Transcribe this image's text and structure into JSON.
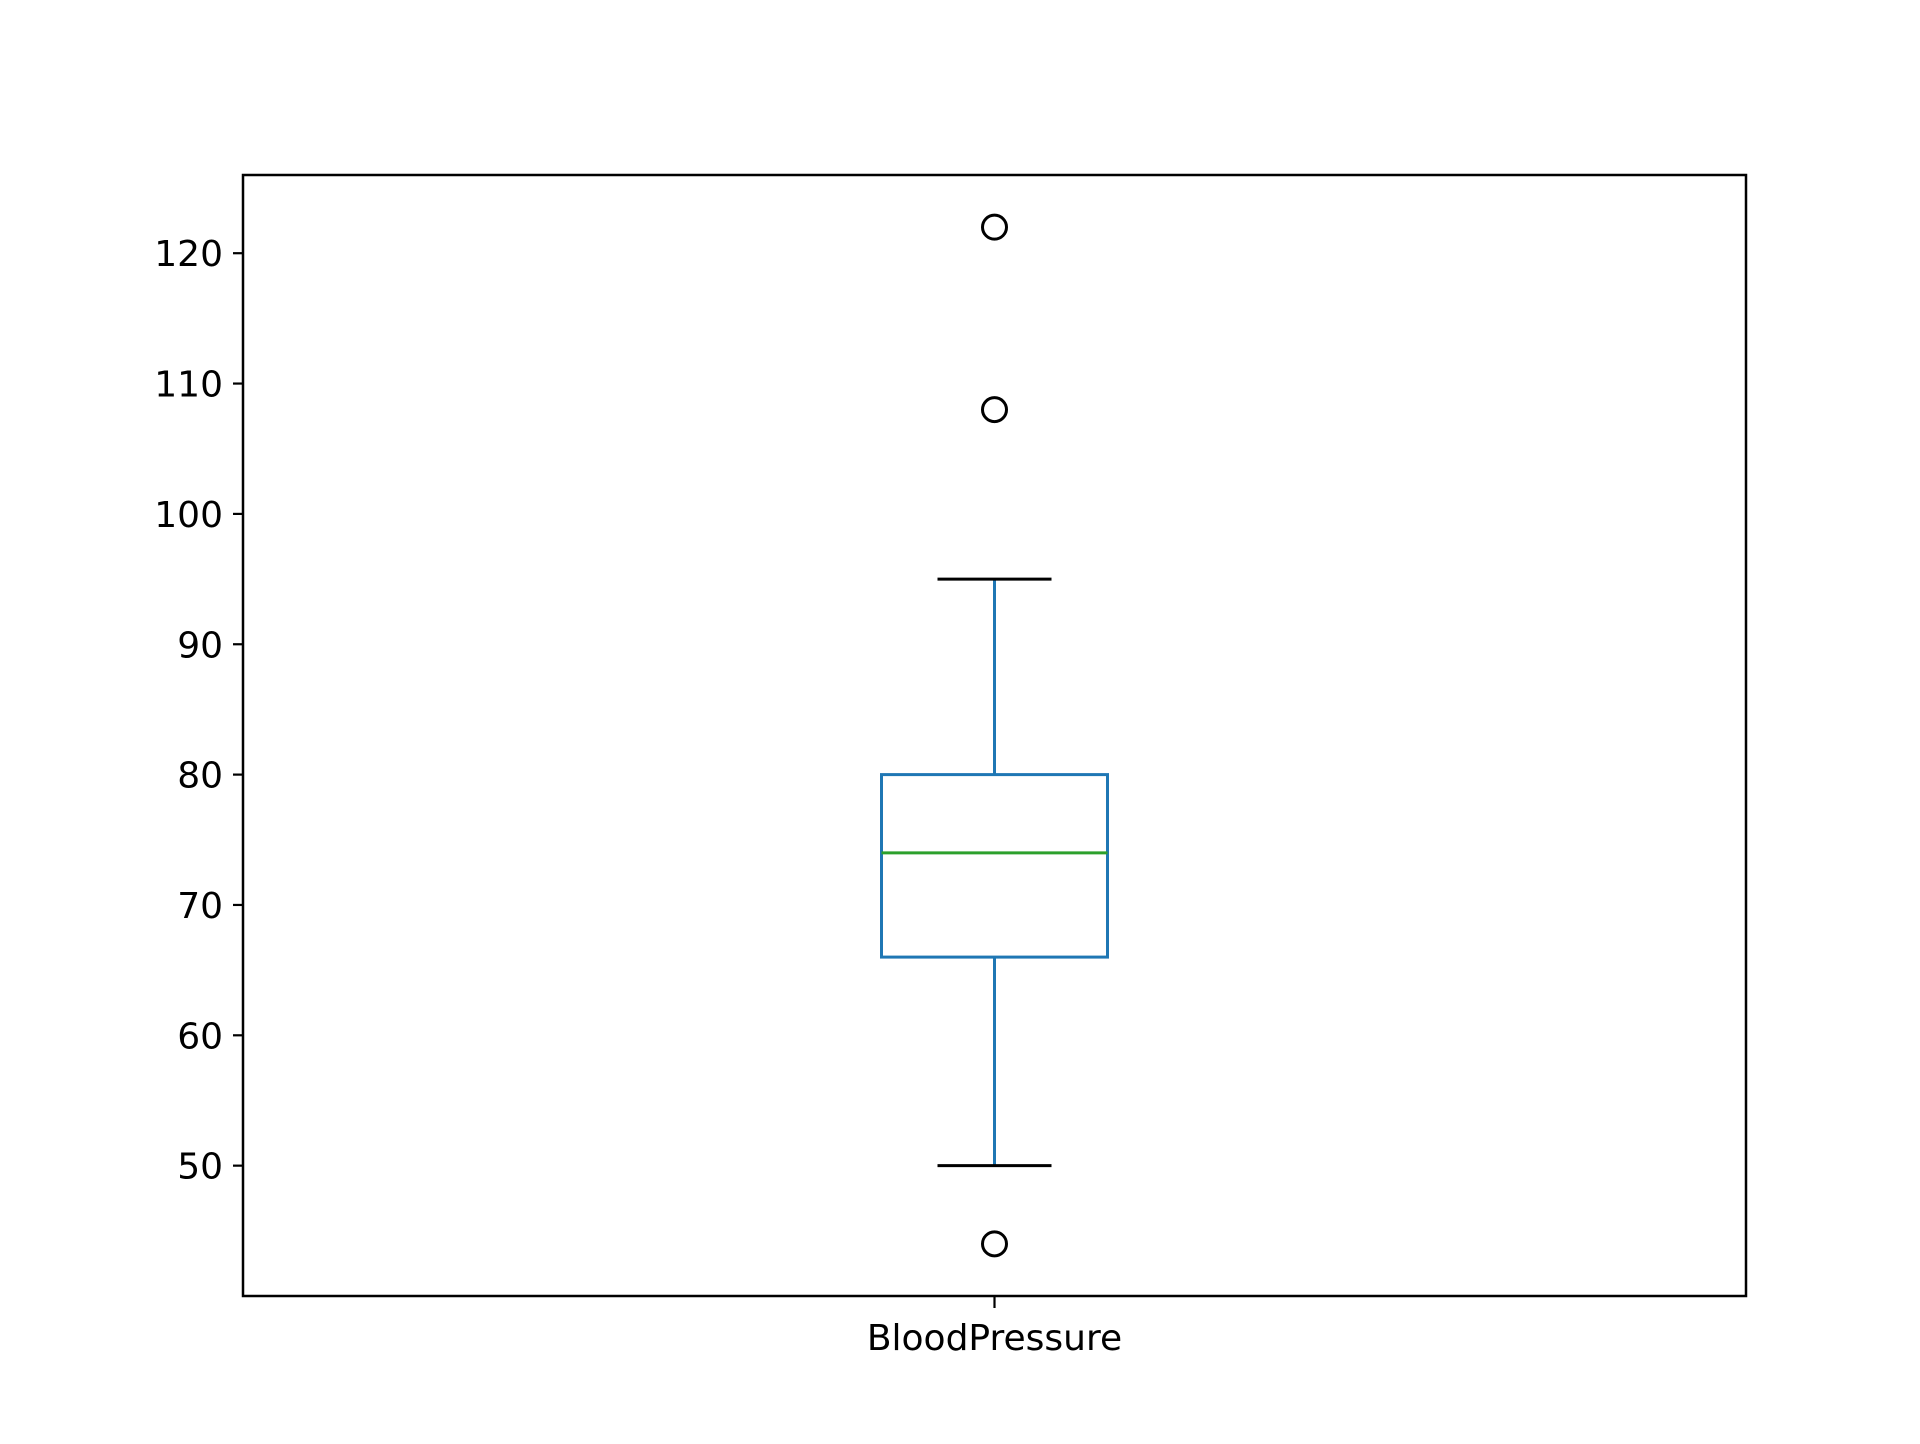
{
  "chart_data": {
    "type": "box",
    "title": "",
    "xlabel": "",
    "ylabel": "",
    "categories": [
      "BloodPressure"
    ],
    "ylim": [
      40,
      126
    ],
    "yticks": [
      50,
      60,
      70,
      80,
      90,
      100,
      110,
      120
    ],
    "grid": false,
    "boxes": [
      {
        "label": "BloodPressure",
        "whisker_low": 50,
        "q1": 66,
        "median": 74,
        "q3": 80,
        "whisker_high": 95,
        "outliers": [
          122,
          108,
          44
        ]
      }
    ],
    "colors": {
      "box": "#1f77b4",
      "median": "#2ca02c",
      "caps": "#000000",
      "fliers": "#000000",
      "axes": "#000000"
    }
  }
}
